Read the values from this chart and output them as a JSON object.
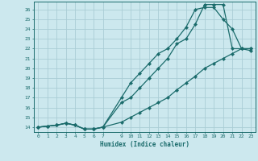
{
  "xlabel": "Humidex (Indice chaleur)",
  "bg_color": "#cce8ee",
  "grid_color": "#aacdd5",
  "line_color": "#1a6b6b",
  "xlim": [
    -0.5,
    23.5
  ],
  "ylim": [
    13.5,
    26.8
  ],
  "xticks": [
    0,
    1,
    2,
    3,
    4,
    5,
    6,
    7,
    9,
    10,
    11,
    12,
    13,
    14,
    15,
    16,
    17,
    18,
    19,
    20,
    21,
    22,
    23
  ],
  "yticks": [
    14,
    15,
    16,
    17,
    18,
    19,
    20,
    21,
    22,
    23,
    24,
    25,
    26
  ],
  "line1_x": [
    0,
    1,
    2,
    3,
    4,
    5,
    6,
    7,
    9,
    10,
    11,
    12,
    13,
    14,
    15,
    16,
    17,
    18,
    19,
    20,
    21,
    22,
    23
  ],
  "line1_y": [
    14,
    14.1,
    14.2,
    14.4,
    14.2,
    13.8,
    13.8,
    14.0,
    17.0,
    18.5,
    19.5,
    20.5,
    21.5,
    22.0,
    23.0,
    24.2,
    26.0,
    26.2,
    26.2,
    25.0,
    24.0,
    22.0,
    21.8
  ],
  "line2_x": [
    0,
    1,
    2,
    3,
    4,
    5,
    6,
    7,
    9,
    10,
    11,
    12,
    13,
    14,
    15,
    16,
    17,
    18,
    19,
    20,
    21,
    22,
    23
  ],
  "line2_y": [
    14,
    14.1,
    14.2,
    14.4,
    14.2,
    13.8,
    13.8,
    14.0,
    16.5,
    17.0,
    18.0,
    19.0,
    20.0,
    21.0,
    22.5,
    23.0,
    24.5,
    26.5,
    26.5,
    26.5,
    22.0,
    22.0,
    22.0
  ],
  "line3_x": [
    0,
    1,
    2,
    3,
    4,
    5,
    6,
    7,
    9,
    10,
    11,
    12,
    13,
    14,
    15,
    16,
    17,
    18,
    19,
    20,
    21,
    22,
    23
  ],
  "line3_y": [
    14,
    14.1,
    14.2,
    14.4,
    14.2,
    13.8,
    13.8,
    14.0,
    14.5,
    15.0,
    15.5,
    16.0,
    16.5,
    17.0,
    17.8,
    18.5,
    19.2,
    20.0,
    20.5,
    21.0,
    21.5,
    22.0,
    22.0
  ]
}
